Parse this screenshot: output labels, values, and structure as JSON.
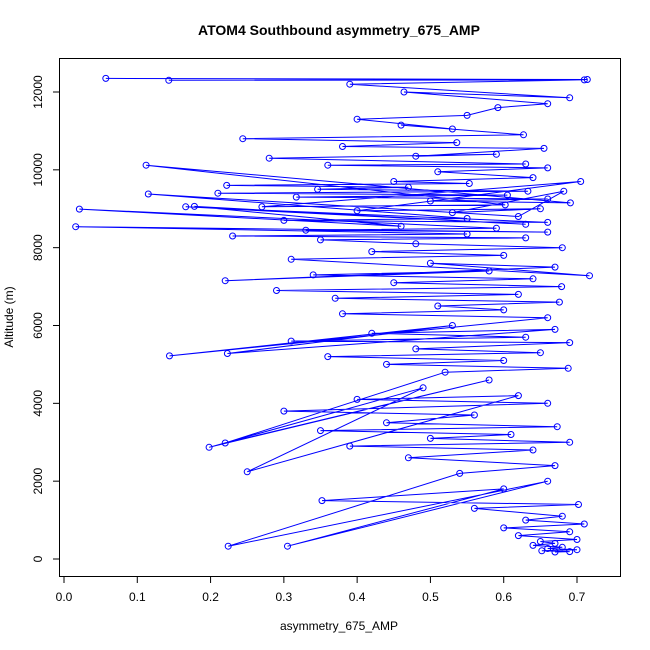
{
  "chart_data": {
    "type": "line",
    "title": "ATOM4 Southbound asymmetry_675_AMP",
    "xlabel": "asymmetry_675_AMP",
    "ylabel": "Altitude (m)",
    "xlim": [
      0.0,
      0.73
    ],
    "ylim": [
      0,
      12400
    ],
    "x_ticks": [
      0.0,
      0.1,
      0.2,
      0.3,
      0.4,
      0.5,
      0.6,
      0.7
    ],
    "x_tick_labels": [
      "0.0",
      "0.1",
      "0.2",
      "0.3",
      "0.4",
      "0.5",
      "0.6",
      "0.7"
    ],
    "y_ticks": [
      0,
      2000,
      4000,
      6000,
      8000,
      10000,
      12000
    ],
    "y_tick_labels": [
      "0",
      "2000",
      "4000",
      "6000",
      "8000",
      "10000",
      "12000"
    ],
    "series_style": {
      "color": "#0000ff",
      "marker": "open-circle",
      "line": "solid"
    },
    "grid": false,
    "legend": "none",
    "series": [
      {
        "x": [
          0.057,
          0.714,
          0.143,
          0.71,
          0.39,
          0.69,
          0.464,
          0.66,
          0.592,
          0.55,
          0.4,
          0.53,
          0.46,
          0.627,
          0.244,
          0.536,
          0.38,
          0.655,
          0.48,
          0.59,
          0.28,
          0.63,
          0.36,
          0.66,
          0.51,
          0.64,
          0.45,
          0.553,
          0.222,
          0.47,
          0.346,
          0.633,
          0.21,
          0.605,
          0.317,
          0.66,
          0.5,
          0.691,
          0.112,
          0.602,
          0.27,
          0.705,
          0.4,
          0.65,
          0.53,
          0.682,
          0.62,
          0.115,
          0.55,
          0.3,
          0.66,
          0.166,
          0.63,
          0.178,
          0.46,
          0.021,
          0.59,
          0.33,
          0.66,
          0.016,
          0.55,
          0.23,
          0.63,
          0.35,
          0.48,
          0.68,
          0.42,
          0.6,
          0.31,
          0.717,
          0.5,
          0.67,
          0.22,
          0.58,
          0.34,
          0.64,
          0.45,
          0.679,
          0.29,
          0.62,
          0.37,
          0.676,
          0.51,
          0.6,
          0.38,
          0.66,
          0.144,
          0.53,
          0.223,
          0.67,
          0.42,
          0.63,
          0.31,
          0.69,
          0.48,
          0.65,
          0.36,
          0.6,
          0.44,
          0.688,
          0.52,
          0.22,
          0.58,
          0.198,
          0.49,
          0.25,
          0.62,
          0.4,
          0.66,
          0.3,
          0.56,
          0.44,
          0.673,
          0.35,
          0.61,
          0.5,
          0.69,
          0.39,
          0.64,
          0.47,
          0.67,
          0.54,
          0.224,
          0.66,
          0.305,
          0.6,
          0.352,
          0.702,
          0.56,
          0.68,
          0.63,
          0.71,
          0.6,
          0.69,
          0.62,
          0.7,
          0.65,
          0.67,
          0.64,
          0.68,
          0.66,
          0.7,
          0.652,
          0.69,
          0.67
        ],
        "y": [
          12350,
          12320,
          12300,
          12310,
          12200,
          11850,
          12000,
          11700,
          11600,
          11400,
          11300,
          11050,
          11150,
          10900,
          10800,
          10700,
          10600,
          10550,
          10350,
          10400,
          10300,
          10150,
          10120,
          10050,
          9950,
          9800,
          9700,
          9650,
          9600,
          9550,
          9500,
          9450,
          9400,
          9350,
          9300,
          9250,
          9200,
          9150,
          10120,
          9100,
          9050,
          9700,
          8950,
          9000,
          8900,
          9450,
          8800,
          9380,
          8750,
          8700,
          8650,
          9050,
          8600,
          9060,
          8550,
          8990,
          8500,
          8450,
          8400,
          8540,
          8350,
          8300,
          8250,
          8200,
          8100,
          8000,
          7900,
          7800,
          7700,
          7280,
          7600,
          7500,
          7150,
          7400,
          7300,
          7200,
          7100,
          7000,
          6900,
          6800,
          6700,
          6600,
          6500,
          6400,
          6300,
          6200,
          5220,
          6000,
          5280,
          5900,
          5800,
          5700,
          5600,
          5560,
          5400,
          5300,
          5200,
          5100,
          5000,
          4900,
          4800,
          2980,
          4600,
          2870,
          4400,
          2240,
          4200,
          4100,
          4000,
          3800,
          3700,
          3500,
          3400,
          3300,
          3200,
          3100,
          3000,
          2900,
          2800,
          2600,
          2400,
          2200,
          330,
          2000,
          330,
          1800,
          1500,
          1400,
          1300,
          1100,
          1000,
          900,
          800,
          700,
          600,
          500,
          450,
          400,
          350,
          300,
          270,
          240,
          210,
          190,
          180
        ]
      }
    ]
  }
}
